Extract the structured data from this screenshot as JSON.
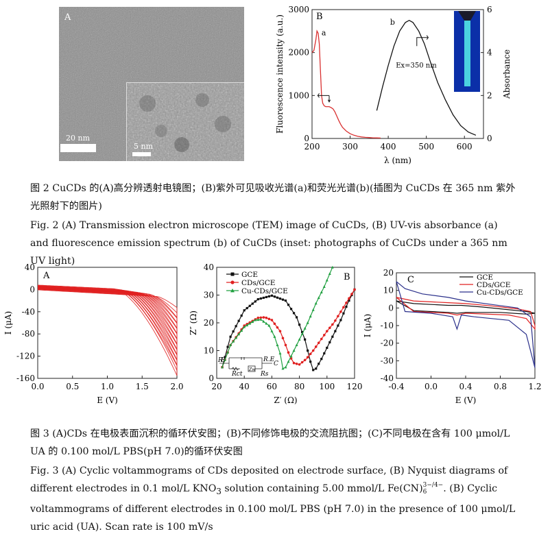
{
  "fig2": {
    "panel_a_letter": "A",
    "scale_main": "20 nm",
    "scale_inset": "5 nm",
    "panel_b_letter": "B",
    "caption_cn": "图 2   CuCDs 的(A)高分辨透射电镜图；(B)紫外可见吸收光谱(a)和荧光光谱(b)(插图为 CuCDs 在 365 nm 紫外光照射下的图片)",
    "caption_en": "Fig. 2   (A) Transmission electron microscope (TEM) image of CuCDs, (B) UV-vis absorbance (a) and fluorescence emission spectrum (b) of CuCDs (inset: photographs of CuCDs under a 365 nm UV light)"
  },
  "fig3": {
    "caption_cn": "图 3   (A)CDs 在电极表面沉积的循环伏安图；(B)不同修饰电极的交流阻抗图；(C)不同电极在含有 100 μmol/L UA 的 0.100 mol/L PBS(pH 7.0)的循环伏安图",
    "caption_en_1": "Fig. 3   (A) Cyclic voltammograms of CDs deposited on electrode surface, (B) Nyquist diagrams of different electrodes in 0.1 mol/L KNO",
    "caption_en_sub3": "3",
    "caption_en_2": " solution containing 5.00 mmol/L Fe(CN)",
    "caption_en_sup": "3−/4−",
    "caption_en_sub6": "6",
    "caption_en_3": ". (B) Cyclic voltammograms of different electrodes in 0.100 mol/L PBS (pH 7.0) in the presence of 100 μmol/L uric acid (UA). Scan rate is 100 mV/s"
  },
  "chart_data": [
    {
      "id": "fig2B",
      "type": "line",
      "panel_label": "B",
      "xlabel": "λ (nm)",
      "ylabel_left": "Fluorescence  intensity (a.u.)",
      "ylabel_right": "Absorbance",
      "xlim": [
        200,
        650
      ],
      "ylim_left": [
        0,
        3000
      ],
      "ylim_right": [
        0,
        6
      ],
      "xticks": [
        200,
        300,
        400,
        500,
        600
      ],
      "yticks_left": [
        0,
        1000,
        2000,
        3000
      ],
      "yticks_right": [
        0,
        2,
        4,
        6
      ],
      "annotation": "Ex=350 nm",
      "series": [
        {
          "name": "a",
          "color": "#d93030",
          "axis": "left",
          "x": [
            200,
            205,
            210,
            213,
            216,
            219,
            222,
            225,
            228,
            232,
            236,
            240,
            245,
            250,
            255,
            260,
            265,
            270,
            275,
            280,
            290,
            300,
            310,
            320,
            330,
            340,
            350,
            360,
            370,
            380
          ],
          "y": [
            2000,
            2050,
            2300,
            2500,
            2450,
            2200,
            1600,
            1000,
            820,
            760,
            740,
            740,
            740,
            720,
            690,
            620,
            520,
            420,
            330,
            260,
            170,
            110,
            75,
            50,
            35,
            25,
            20,
            15,
            12,
            10
          ]
        },
        {
          "name": "b",
          "color": "#111111",
          "axis": "right",
          "x": [
            370,
            385,
            400,
            415,
            430,
            445,
            455,
            465,
            480,
            495,
            510,
            530,
            550,
            570,
            590,
            610,
            630
          ],
          "y": [
            1.3,
            2.4,
            3.4,
            4.3,
            5.0,
            5.4,
            5.5,
            5.4,
            5.0,
            4.4,
            3.6,
            2.6,
            1.8,
            1.1,
            0.6,
            0.3,
            0.15
          ]
        }
      ]
    },
    {
      "id": "fig3A",
      "type": "line",
      "panel_label": "A",
      "xlabel": "E (V)",
      "ylabel": "I (μA)",
      "xlim": [
        0,
        2
      ],
      "ylim": [
        -160,
        40
      ],
      "xticks": [
        0.0,
        0.5,
        1.0,
        1.5,
        2.0
      ],
      "yticks": [
        40,
        0,
        -40,
        -80,
        -120,
        -160
      ],
      "series_color": "#e02020",
      "series_count": 12
    },
    {
      "id": "fig3B",
      "type": "line",
      "panel_label": "B",
      "xlabel": "Z′ (Ω)",
      "ylabel": "Z″ (Ω)",
      "xlim": [
        20,
        120
      ],
      "ylim": [
        0,
        40
      ],
      "xticks": [
        20,
        40,
        60,
        80,
        100,
        120
      ],
      "yticks": [
        0,
        10,
        20,
        30,
        40
      ],
      "circuit_labels": [
        "R",
        "E",
        "Rct",
        "Zw",
        "Rs",
        "R.E",
        "C"
      ],
      "series": [
        {
          "name": "GCE",
          "color": "#111111",
          "marker": "square",
          "x": [
            24,
            30,
            40,
            50,
            60,
            70,
            78,
            84,
            88,
            90,
            92,
            96,
            100,
            105,
            110,
            115,
            120
          ],
          "y": [
            4,
            15,
            24.5,
            28.5,
            29.8,
            28,
            22,
            14,
            6,
            3,
            3.5,
            7,
            11,
            16,
            21,
            27,
            32
          ]
        },
        {
          "name": "CDs/GCE",
          "color": "#e02020",
          "marker": "circle",
          "x": [
            24,
            30,
            40,
            50,
            55,
            60,
            66,
            70,
            73,
            76,
            80,
            85,
            90,
            95,
            100,
            105,
            110,
            115,
            120
          ],
          "y": [
            4,
            12,
            19,
            21.8,
            22,
            21,
            17,
            12,
            8,
            5.5,
            5,
            7,
            10,
            13.5,
            17,
            20,
            24,
            28,
            32
          ]
        },
        {
          "name": "Cu-CDs/GCE",
          "color": "#20a040",
          "marker": "triangle",
          "x": [
            24,
            30,
            40,
            48,
            52,
            58,
            62,
            66,
            68,
            70,
            74,
            80,
            86,
            92,
            98,
            104
          ],
          "y": [
            4,
            12,
            18.5,
            21,
            21.2,
            19,
            15,
            9,
            3.5,
            4,
            8,
            14,
            20,
            27,
            33,
            40
          ]
        }
      ]
    },
    {
      "id": "fig3C",
      "type": "line",
      "panel_label": "C",
      "xlabel": "E (V)",
      "ylabel": "I (μA)",
      "xlim": [
        -0.4,
        1.2
      ],
      "ylim": [
        -40,
        20
      ],
      "xticks": [
        -0.4,
        0.0,
        0.4,
        0.8,
        1.2
      ],
      "yticks": [
        -40,
        -30,
        -20,
        -10,
        0,
        10,
        20
      ],
      "series": [
        {
          "name": "GCE",
          "color": "#111111"
        },
        {
          "name": "CDs/GCE",
          "color": "#e02020"
        },
        {
          "name": "Cu-CDs/GCE",
          "color": "#2a2f8a"
        }
      ]
    }
  ]
}
